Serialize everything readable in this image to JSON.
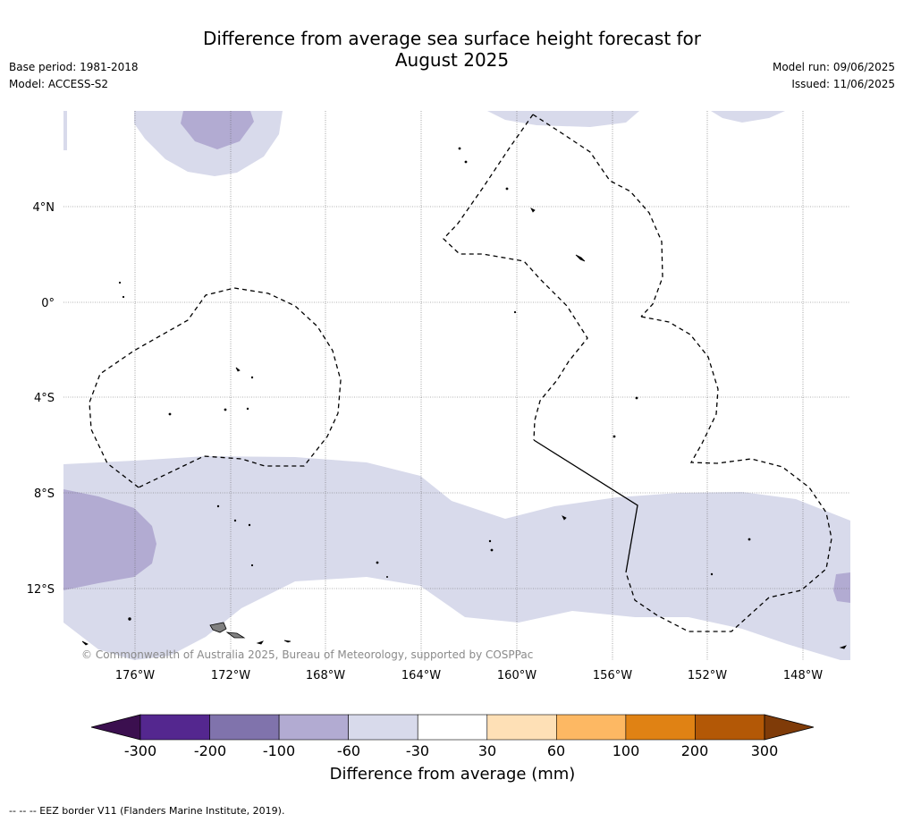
{
  "title": "Difference from average sea surface height forecast for August 2025",
  "title_line1": "Difference from average sea surface height forecast for",
  "title_line2": "August 2025",
  "left_meta": {
    "base_period": "Base period: 1981-2018",
    "model": "Model: ACCESS-S2"
  },
  "right_meta": {
    "model_run": "Model run: 09/06/2025",
    "issued": "Issued: 11/06/2025"
  },
  "map": {
    "lat_labels": [
      "4°N",
      "0°",
      "4°S",
      "8°S",
      "12°S"
    ],
    "lon_labels": [
      "176°W",
      "172°W",
      "168°W",
      "164°W",
      "160°W",
      "156°W",
      "152°W",
      "148°W"
    ],
    "copyright": "© Commonwealth of Australia 2025, Bureau of Meteorology, supported by COSPPac"
  },
  "colorbar": {
    "ticks": [
      "-300",
      "-200",
      "-100",
      "-60",
      "-30",
      "30",
      "60",
      "100",
      "200",
      "300"
    ],
    "colors": {
      "below_min": "#3b0f4f",
      "bins": [
        "#54278f",
        "#8073ac",
        "#b2abd2",
        "#d8daeb",
        "#ffffff",
        "#fee0b6",
        "#fdb863",
        "#e08214",
        "#b35806"
      ],
      "above_max": "#7f3b08"
    },
    "label": "Difference from average (mm)"
  },
  "footnote": "--  --  -- EEZ border V11 (Flanders Marine Institute, 2019).",
  "colors": {
    "anomaly_light": "#d8daeb",
    "anomaly_medium": "#b2abd2",
    "land": "#808080"
  }
}
